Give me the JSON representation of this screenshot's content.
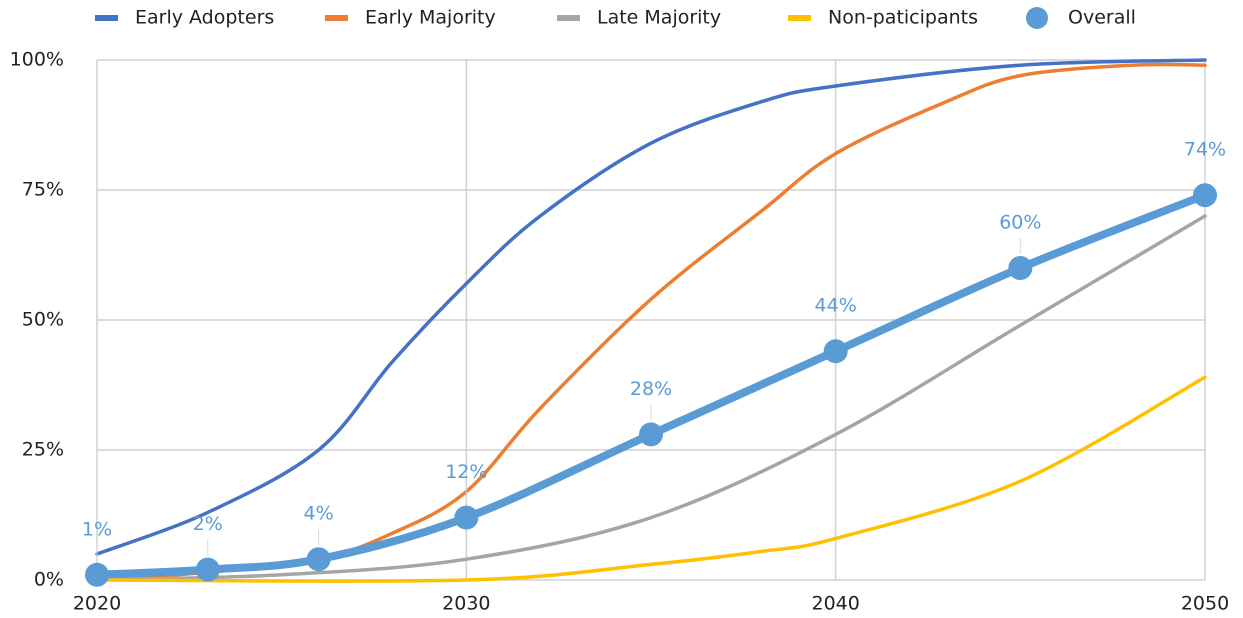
{
  "chart_data": {
    "type": "line",
    "xlim": [
      2020,
      2050
    ],
    "xticks": [
      2020,
      2030,
      2040,
      2050
    ],
    "ylim": [
      0,
      100
    ],
    "yticks": [
      {
        "value": 0,
        "label": "0%"
      },
      {
        "value": 25,
        "label": "25%"
      },
      {
        "value": 50,
        "label": "50%"
      },
      {
        "value": 75,
        "label": "75%"
      },
      {
        "value": 100,
        "label": "100%"
      }
    ],
    "grid": true,
    "legend": "top",
    "series": [
      {
        "name": "Early Adopters",
        "color": "#4472c4",
        "x": [
          2020,
          2023,
          2026,
          2028,
          2030,
          2032,
          2035,
          2038,
          2040,
          2045,
          2050
        ],
        "values": [
          5,
          13,
          25,
          42,
          57,
          70,
          84,
          92,
          95,
          99,
          100
        ]
      },
      {
        "name": "Early Majority",
        "color": "#ed7d31",
        "x": [
          2020,
          2023,
          2026,
          2028,
          2030,
          2032,
          2035,
          2038,
          2040,
          2043,
          2045,
          2048,
          2050
        ],
        "values": [
          0,
          1.5,
          4,
          9,
          17,
          33,
          54,
          71,
          82,
          92,
          97,
          99,
          99
        ]
      },
      {
        "name": "Late Majority",
        "color": "#a5a5a5",
        "x": [
          2020,
          2025,
          2030,
          2035,
          2040,
          2045,
          2050
        ],
        "values": [
          0,
          1,
          4,
          12,
          28,
          49,
          70
        ]
      },
      {
        "name": "Non-paticipants",
        "color": "#ffc000",
        "x": [
          2020,
          2030,
          2035,
          2038,
          2040,
          2045,
          2050
        ],
        "values": [
          0,
          0,
          3,
          5.5,
          8,
          19,
          39
        ]
      },
      {
        "name": "Overall",
        "color": "#5b9bd5",
        "markers": true,
        "x": [
          2020,
          2023,
          2026,
          2030,
          2035,
          2040,
          2045,
          2050
        ],
        "values": [
          1,
          2,
          4,
          12,
          28,
          44,
          60,
          74
        ],
        "value_labels": [
          "1%",
          "2%",
          "4%",
          "12%",
          "28%",
          "44%",
          "60%",
          "74%"
        ]
      }
    ]
  }
}
